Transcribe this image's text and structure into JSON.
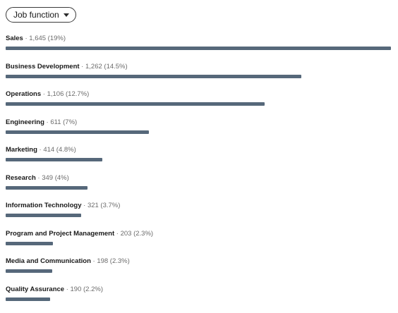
{
  "filter": {
    "label": "Job function"
  },
  "colors": {
    "bar": "#56687a"
  },
  "functions": [
    {
      "name": "Sales",
      "stat": " · 1,645 (19%)",
      "count": 1645
    },
    {
      "name": "Business Development",
      "stat": " · 1,262 (14.5%)",
      "count": 1262
    },
    {
      "name": "Operations",
      "stat": " · 1,106 (12.7%)",
      "count": 1106
    },
    {
      "name": "Engineering",
      "stat": " · 611 (7%)",
      "count": 611
    },
    {
      "name": "Marketing",
      "stat": " · 414 (4.8%)",
      "count": 414
    },
    {
      "name": "Research",
      "stat": " · 349 (4%)",
      "count": 349
    },
    {
      "name": "Information Technology",
      "stat": " · 321 (3.7%)",
      "count": 321
    },
    {
      "name": "Program and Project Management",
      "stat": " · 203 (2.3%)",
      "count": 203
    },
    {
      "name": "Media and Communication",
      "stat": " · 198 (2.3%)",
      "count": 198
    },
    {
      "name": "Quality Assurance",
      "stat": " · 190 (2.2%)",
      "count": 190
    }
  ]
}
